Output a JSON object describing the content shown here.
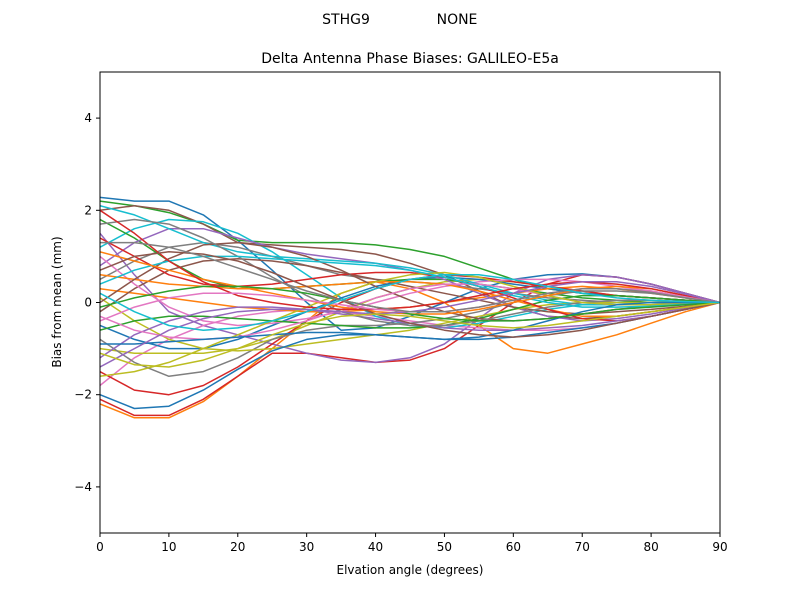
{
  "figure": {
    "suptitle_left": "STHG9",
    "suptitle_right": "NONE"
  },
  "chart_data": {
    "type": "line",
    "title": "Delta Antenna Phase Biases: GALILEO-E5a",
    "xlabel": "Elvation angle (degrees)",
    "ylabel": "Bias from mean (mm)",
    "xlim": [
      0,
      90
    ],
    "ylim": [
      -5,
      5
    ],
    "xticks": [
      0,
      10,
      20,
      30,
      40,
      50,
      60,
      70,
      80,
      90
    ],
    "yticks": [
      -4,
      -2,
      0,
      2,
      4
    ],
    "ytick_labels": [
      "−4",
      "−2",
      "0",
      "2",
      "4"
    ],
    "grid": false,
    "legend": null,
    "color_cycle": [
      "#1f77b4",
      "#ff7f0e",
      "#2ca02c",
      "#d62728",
      "#9467bd",
      "#8c564b",
      "#e377c2",
      "#7f7f7f",
      "#bcbd22",
      "#17becf"
    ],
    "x": [
      0,
      5,
      10,
      15,
      20,
      25,
      30,
      35,
      40,
      45,
      50,
      55,
      60,
      65,
      70,
      75,
      80,
      85,
      90
    ],
    "series_note": "Family of ~40 bias curves (values estimated from pixels), all converging to 0 at 90 degrees",
    "series": [
      {
        "name": "s1",
        "values": [
          2.28,
          2.2,
          2.2,
          1.9,
          1.35,
          0.7,
          0.0,
          -0.6,
          -0.55,
          -0.3,
          0.0,
          0.3,
          0.5,
          0.6,
          0.62,
          0.55,
          0.4,
          0.2,
          0.0
        ]
      },
      {
        "name": "s2",
        "values": [
          -2.2,
          -2.5,
          -2.5,
          -2.15,
          -1.6,
          -1.0,
          -0.4,
          0.2,
          0.45,
          0.3,
          0.0,
          -0.5,
          -1.0,
          -1.1,
          -0.9,
          -0.7,
          -0.45,
          -0.2,
          0.0
        ]
      },
      {
        "name": "s3",
        "values": [
          2.2,
          2.1,
          1.95,
          1.7,
          1.35,
          1.3,
          1.3,
          1.3,
          1.25,
          1.15,
          1.0,
          0.75,
          0.5,
          0.3,
          0.2,
          0.15,
          0.1,
          0.05,
          0.0
        ]
      },
      {
        "name": "s4",
        "values": [
          -2.1,
          -2.45,
          -2.45,
          -2.1,
          -1.6,
          -1.1,
          -1.1,
          -1.2,
          -1.3,
          -1.25,
          -1.0,
          -0.5,
          0.0,
          0.4,
          0.6,
          0.55,
          0.4,
          0.2,
          0.0
        ]
      },
      {
        "name": "s5",
        "values": [
          1.5,
          0.6,
          -0.2,
          -0.5,
          -0.7,
          -0.9,
          -1.1,
          -1.25,
          -1.3,
          -1.2,
          -0.9,
          -0.35,
          0.2,
          0.5,
          0.6,
          0.55,
          0.4,
          0.2,
          0.0
        ]
      },
      {
        "name": "s6",
        "values": [
          2.0,
          2.1,
          2.0,
          1.7,
          1.3,
          1.25,
          1.2,
          1.15,
          1.05,
          0.85,
          0.6,
          0.25,
          -0.1,
          -0.3,
          -0.35,
          -0.3,
          -0.2,
          -0.1,
          0.0
        ]
      },
      {
        "name": "s7",
        "values": [
          -1.8,
          -1.2,
          -0.8,
          -0.5,
          -0.3,
          -0.2,
          -0.15,
          -0.2,
          -0.3,
          -0.4,
          -0.5,
          -0.55,
          -0.6,
          -0.6,
          -0.55,
          -0.45,
          -0.3,
          -0.15,
          0.0
        ]
      },
      {
        "name": "s8",
        "values": [
          0.5,
          0.9,
          1.2,
          1.3,
          1.2,
          1.0,
          0.8,
          0.6,
          0.5,
          0.45,
          0.4,
          0.3,
          0.2,
          0.1,
          0.05,
          0.0,
          0.0,
          0.0,
          0.0
        ]
      },
      {
        "name": "s9",
        "values": [
          -1.0,
          -1.1,
          -1.1,
          -1.1,
          -1.0,
          -0.8,
          -0.5,
          -0.2,
          0.1,
          0.3,
          0.45,
          0.5,
          0.45,
          0.35,
          0.25,
          0.15,
          0.1,
          0.05,
          0.0
        ]
      },
      {
        "name": "s10",
        "values": [
          1.2,
          1.6,
          1.8,
          1.75,
          1.5,
          1.1,
          0.6,
          0.1,
          -0.3,
          -0.5,
          -0.55,
          -0.45,
          -0.3,
          -0.15,
          -0.05,
          0.0,
          0.0,
          0.0,
          0.0
        ]
      },
      {
        "name": "s11",
        "values": [
          -0.5,
          -0.8,
          -1.0,
          -1.0,
          -0.8,
          -0.5,
          -0.2,
          0.1,
          0.35,
          0.5,
          0.55,
          0.5,
          0.4,
          0.3,
          0.2,
          0.15,
          0.1,
          0.05,
          0.0
        ]
      },
      {
        "name": "s12",
        "values": [
          0.3,
          0.2,
          0.1,
          0.0,
          -0.1,
          -0.15,
          -0.2,
          -0.2,
          -0.15,
          -0.1,
          0.0,
          0.1,
          0.2,
          0.3,
          0.35,
          0.3,
          0.2,
          0.1,
          0.0
        ]
      },
      {
        "name": "s13",
        "values": [
          1.8,
          1.4,
          0.9,
          0.5,
          0.3,
          0.3,
          0.35,
          0.4,
          0.45,
          0.5,
          0.5,
          0.4,
          0.3,
          0.2,
          0.1,
          0.05,
          0.0,
          0.0,
          0.0
        ]
      },
      {
        "name": "s14",
        "values": [
          -1.5,
          -1.9,
          -2.0,
          -1.8,
          -1.4,
          -0.9,
          -0.4,
          0.0,
          0.3,
          0.5,
          0.6,
          0.55,
          0.45,
          0.35,
          0.25,
          0.15,
          0.1,
          0.05,
          0.0
        ]
      },
      {
        "name": "s15",
        "values": [
          0.8,
          1.3,
          1.6,
          1.6,
          1.4,
          1.2,
          1.05,
          0.95,
          0.85,
          0.7,
          0.5,
          0.2,
          -0.1,
          -0.3,
          -0.4,
          -0.35,
          -0.25,
          -0.12,
          0.0
        ]
      },
      {
        "name": "s16",
        "values": [
          -0.2,
          0.3,
          0.7,
          0.9,
          0.95,
          0.9,
          0.8,
          0.65,
          0.5,
          0.35,
          0.2,
          0.05,
          -0.1,
          -0.2,
          -0.25,
          -0.2,
          -0.15,
          -0.08,
          0.0
        ]
      },
      {
        "name": "s17",
        "values": [
          1.0,
          0.4,
          -0.1,
          -0.4,
          -0.5,
          -0.45,
          -0.35,
          -0.2,
          0.0,
          0.2,
          0.35,
          0.45,
          0.5,
          0.5,
          0.45,
          0.35,
          0.25,
          0.12,
          0.0
        ]
      },
      {
        "name": "s18",
        "values": [
          -0.8,
          -1.3,
          -1.6,
          -1.5,
          -1.2,
          -0.8,
          -0.6,
          -0.5,
          -0.5,
          -0.45,
          -0.35,
          -0.2,
          0.0,
          0.15,
          0.25,
          0.25,
          0.2,
          0.1,
          0.0
        ]
      },
      {
        "name": "s19",
        "values": [
          0.1,
          -0.4,
          -0.8,
          -1.0,
          -1.05,
          -1.0,
          -0.9,
          -0.8,
          -0.7,
          -0.6,
          -0.45,
          -0.3,
          -0.15,
          -0.05,
          0.0,
          0.0,
          0.0,
          0.0,
          0.0
        ]
      },
      {
        "name": "s20",
        "values": [
          2.1,
          1.9,
          1.6,
          1.3,
          1.1,
          1.0,
          0.95,
          0.9,
          0.85,
          0.75,
          0.6,
          0.4,
          0.2,
          0.05,
          -0.05,
          -0.05,
          -0.05,
          -0.02,
          0.0
        ]
      },
      {
        "name": "s21",
        "values": [
          -2.0,
          -2.3,
          -2.25,
          -1.9,
          -1.45,
          -1.05,
          -0.8,
          -0.7,
          -0.7,
          -0.75,
          -0.8,
          -0.8,
          -0.75,
          -0.65,
          -0.55,
          -0.45,
          -0.3,
          -0.15,
          0.0
        ]
      },
      {
        "name": "s22",
        "values": [
          0.6,
          0.5,
          0.4,
          0.35,
          0.3,
          0.3,
          0.35,
          0.4,
          0.45,
          0.45,
          0.4,
          0.25,
          0.05,
          -0.15,
          -0.3,
          -0.3,
          -0.2,
          -0.1,
          0.0
        ]
      },
      {
        "name": "s23",
        "values": [
          -0.6,
          -0.4,
          -0.3,
          -0.3,
          -0.35,
          -0.4,
          -0.45,
          -0.5,
          -0.55,
          -0.55,
          -0.5,
          -0.35,
          -0.15,
          0.05,
          0.15,
          0.15,
          0.1,
          0.05,
          0.0
        ]
      },
      {
        "name": "s24",
        "values": [
          1.4,
          1.0,
          0.6,
          0.4,
          0.35,
          0.4,
          0.5,
          0.6,
          0.65,
          0.65,
          0.55,
          0.35,
          0.1,
          -0.15,
          -0.35,
          -0.4,
          -0.3,
          -0.15,
          0.0
        ]
      },
      {
        "name": "s25",
        "values": [
          -1.2,
          -0.7,
          -0.4,
          -0.2,
          -0.1,
          -0.1,
          -0.15,
          -0.25,
          -0.35,
          -0.45,
          -0.55,
          -0.6,
          -0.6,
          -0.55,
          -0.5,
          -0.4,
          -0.3,
          -0.15,
          0.0
        ]
      },
      {
        "name": "s26",
        "values": [
          0.0,
          0.5,
          0.95,
          1.25,
          1.3,
          1.2,
          1.0,
          0.7,
          0.35,
          0.05,
          -0.2,
          -0.35,
          -0.4,
          -0.35,
          -0.25,
          -0.15,
          -0.08,
          -0.04,
          0.0
        ]
      },
      {
        "name": "s27",
        "values": [
          -0.3,
          -0.6,
          -0.75,
          -0.8,
          -0.75,
          -0.6,
          -0.4,
          -0.15,
          0.1,
          0.3,
          0.4,
          0.4,
          0.3,
          0.15,
          0.0,
          -0.05,
          -0.05,
          -0.02,
          0.0
        ]
      },
      {
        "name": "s28",
        "values": [
          1.7,
          1.8,
          1.7,
          1.4,
          1.0,
          0.55,
          0.15,
          -0.2,
          -0.4,
          -0.5,
          -0.5,
          -0.4,
          -0.25,
          -0.1,
          0.0,
          0.05,
          0.05,
          0.02,
          0.0
        ]
      },
      {
        "name": "s29",
        "values": [
          -1.6,
          -1.5,
          -1.3,
          -1.0,
          -0.7,
          -0.4,
          -0.1,
          0.2,
          0.45,
          0.6,
          0.65,
          0.55,
          0.35,
          0.15,
          0.0,
          -0.05,
          -0.05,
          -0.02,
          0.0
        ]
      },
      {
        "name": "s30",
        "values": [
          0.4,
          0.7,
          0.9,
          1.0,
          1.0,
          0.95,
          0.9,
          0.85,
          0.8,
          0.7,
          0.55,
          0.35,
          0.15,
          0.0,
          -0.1,
          -0.1,
          -0.08,
          -0.04,
          0.0
        ]
      },
      {
        "name": "s31",
        "values": [
          -0.9,
          -0.9,
          -0.85,
          -0.8,
          -0.75,
          -0.7,
          -0.65,
          -0.65,
          -0.7,
          -0.75,
          -0.8,
          -0.75,
          -0.6,
          -0.4,
          -0.2,
          -0.05,
          0.0,
          0.0,
          0.0
        ]
      },
      {
        "name": "s32",
        "values": [
          1.1,
          0.9,
          0.7,
          0.5,
          0.35,
          0.2,
          0.05,
          -0.1,
          -0.2,
          -0.25,
          -0.25,
          -0.15,
          0.0,
          0.15,
          0.3,
          0.35,
          0.3,
          0.15,
          0.0
        ]
      },
      {
        "name": "s33",
        "values": [
          -0.1,
          0.1,
          0.25,
          0.35,
          0.35,
          0.3,
          0.2,
          0.05,
          -0.1,
          -0.25,
          -0.35,
          -0.4,
          -0.4,
          -0.35,
          -0.25,
          -0.15,
          -0.1,
          -0.05,
          0.0
        ]
      },
      {
        "name": "s34",
        "values": [
          2.0,
          1.5,
          0.9,
          0.45,
          0.15,
          0.0,
          -0.1,
          -0.15,
          -0.15,
          -0.1,
          0.0,
          0.15,
          0.3,
          0.4,
          0.45,
          0.4,
          0.3,
          0.15,
          0.0
        ]
      },
      {
        "name": "s35",
        "values": [
          -1.4,
          -1.0,
          -0.6,
          -0.35,
          -0.2,
          -0.15,
          -0.15,
          -0.2,
          -0.25,
          -0.2,
          -0.1,
          0.05,
          0.2,
          0.35,
          0.45,
          0.45,
          0.35,
          0.18,
          0.0
        ]
      },
      {
        "name": "s36",
        "values": [
          0.7,
          1.0,
          1.1,
          1.05,
          0.9,
          0.65,
          0.35,
          0.05,
          -0.25,
          -0.45,
          -0.6,
          -0.7,
          -0.75,
          -0.7,
          -0.6,
          -0.45,
          -0.3,
          -0.15,
          0.0
        ]
      },
      {
        "name": "s37",
        "values": [
          -0.4,
          -0.1,
          0.1,
          0.2,
          0.2,
          0.15,
          0.05,
          -0.05,
          -0.15,
          -0.2,
          -0.2,
          -0.1,
          0.05,
          0.2,
          0.3,
          0.3,
          0.25,
          0.12,
          0.0
        ]
      },
      {
        "name": "s38",
        "values": [
          1.3,
          1.3,
          1.2,
          1.0,
          0.75,
          0.5,
          0.25,
          0.05,
          -0.1,
          -0.2,
          -0.2,
          -0.1,
          0.05,
          0.2,
          0.3,
          0.3,
          0.22,
          0.1,
          0.0
        ]
      },
      {
        "name": "s39",
        "values": [
          -1.1,
          -1.35,
          -1.4,
          -1.25,
          -1.0,
          -0.7,
          -0.45,
          -0.3,
          -0.25,
          -0.3,
          -0.4,
          -0.5,
          -0.55,
          -0.5,
          -0.4,
          -0.3,
          -0.2,
          -0.1,
          0.0
        ]
      },
      {
        "name": "s40",
        "values": [
          0.2,
          -0.2,
          -0.5,
          -0.6,
          -0.55,
          -0.4,
          -0.2,
          0.05,
          0.3,
          0.5,
          0.6,
          0.6,
          0.5,
          0.35,
          0.2,
          0.1,
          0.05,
          0.02,
          0.0
        ]
      }
    ]
  }
}
